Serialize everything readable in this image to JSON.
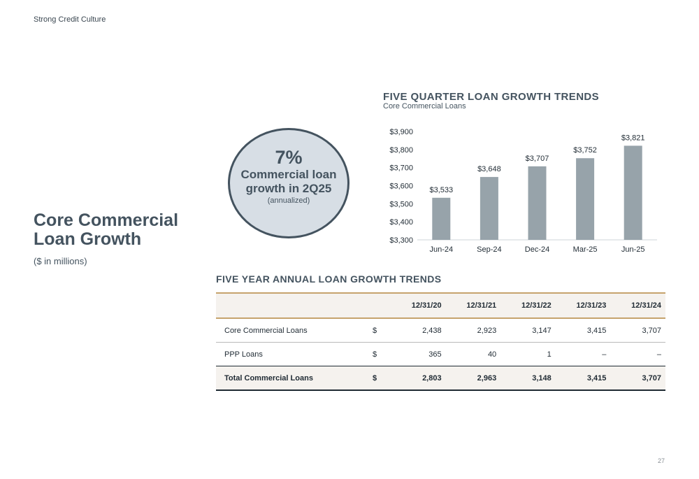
{
  "header": {
    "section_label": "Strong Credit Culture"
  },
  "page": {
    "title_line1": "Core Commercial",
    "title_line2": "Loan Growth",
    "units": "($ in millions)",
    "page_number": "27"
  },
  "callout": {
    "percent": "7%",
    "description": "Commercial loan growth in 2Q25",
    "note": "(annualized)"
  },
  "chart_data": {
    "type": "bar",
    "title": "FIVE QUARTER LOAN GROWTH TRENDS",
    "subtitle": "Core Commercial Loans",
    "categories": [
      "Jun-24",
      "Sep-24",
      "Dec-24",
      "Mar-25",
      "Jun-25"
    ],
    "values": [
      3533,
      3648,
      3707,
      3752,
      3821
    ],
    "data_labels": [
      "$3,533",
      "$3,648",
      "$3,707",
      "$3,752",
      "$3,821"
    ],
    "ylim": [
      3300,
      3900
    ],
    "yticks": [
      3300,
      3400,
      3500,
      3600,
      3700,
      3800,
      3900
    ],
    "ytick_labels": [
      "$3,300",
      "$3,400",
      "$3,500",
      "$3,600",
      "$3,700",
      "$3,800",
      "$3,900"
    ],
    "grid": false,
    "bar_color": "#97a3aa",
    "xlabel": "",
    "ylabel": ""
  },
  "table": {
    "title": "FIVE YEAR ANNUAL LOAN GROWTH TRENDS",
    "columns": [
      "12/31/20",
      "12/31/21",
      "12/31/22",
      "12/31/23",
      "12/31/24"
    ],
    "rows": [
      {
        "label": "Core Commercial Loans",
        "currency": "$",
        "values": [
          "2,438",
          "2,923",
          "3,147",
          "3,415",
          "3,707"
        ]
      },
      {
        "label": "PPP Loans",
        "currency": "$",
        "values": [
          "365",
          "40",
          "1",
          "–",
          "–"
        ]
      },
      {
        "label": "Total Commercial Loans",
        "currency": "$",
        "values": [
          "2,803",
          "2,963",
          "3,148",
          "3,415",
          "3,707"
        ]
      }
    ]
  }
}
